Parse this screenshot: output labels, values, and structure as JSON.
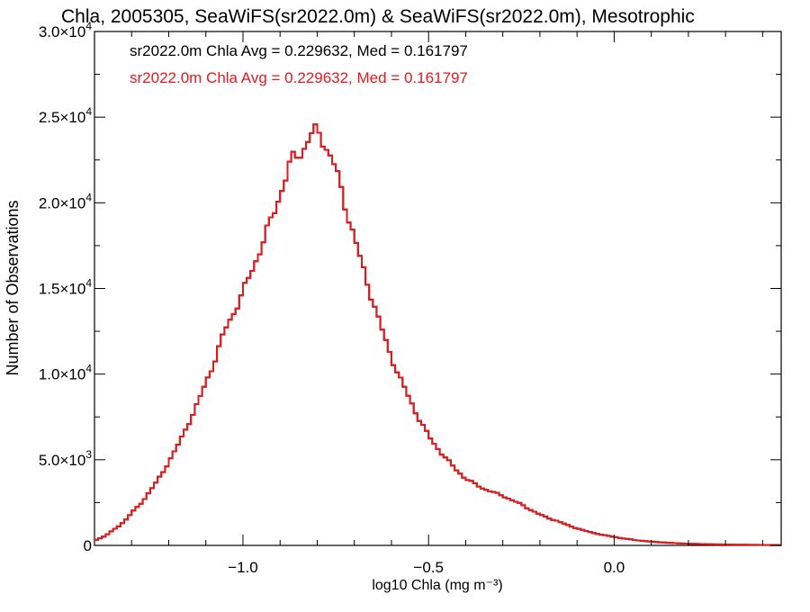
{
  "chart_data": {
    "type": "line",
    "title": "Chla, 2005305, SeaWiFS(sr2022.0m) & SeaWiFS(sr2022.0m), Mesotrophic",
    "xlabel": "log10 Chla (mg m⁻³)",
    "ylabel": "Number of Observations",
    "xlim": [
      -1.4,
      0.45
    ],
    "ylim": [
      0,
      30000
    ],
    "x_ticks": [
      -1.0,
      -0.5,
      0.0
    ],
    "x_tick_labels": [
      "−1.0",
      "−0.5",
      "0.0"
    ],
    "y_ticks": [
      0,
      5000,
      10000,
      15000,
      20000,
      25000,
      30000
    ],
    "y_tick_labels": [
      {
        "mant": "0",
        "exp": ""
      },
      {
        "mant": "5.0×10",
        "exp": "3"
      },
      {
        "mant": "1.0×10",
        "exp": "4"
      },
      {
        "mant": "1.5×10",
        "exp": "4"
      },
      {
        "mant": "2.0×10",
        "exp": "4"
      },
      {
        "mant": "2.5×10",
        "exp": "4"
      },
      {
        "mant": "3.0×10",
        "exp": "4"
      }
    ],
    "annotations": [
      {
        "text": "sr2022.0m Chla Avg = 0.229632, Med = 0.161797",
        "color": "#000000"
      },
      {
        "text": "sr2022.0m Chla Avg = 0.229632, Med = 0.161797",
        "color": "#e41a1c"
      }
    ],
    "series": [
      {
        "color": "#000000",
        "x": [
          -1.4,
          -1.35,
          -1.3,
          -1.25,
          -1.2,
          -1.15,
          -1.1,
          -1.05,
          -1.0,
          -0.95,
          -0.9,
          -0.87,
          -0.84,
          -0.82,
          -0.8,
          -0.78,
          -0.75,
          -0.7,
          -0.65,
          -0.6,
          -0.55,
          -0.5,
          -0.45,
          -0.4,
          -0.35,
          -0.3,
          -0.25,
          -0.2,
          -0.15,
          -0.1,
          -0.05,
          0.0,
          0.05,
          0.1,
          0.2,
          0.3,
          0.45
        ],
        "y": [
          300,
          900,
          1900,
          3200,
          4900,
          7000,
          9500,
          12500,
          14800,
          17500,
          20500,
          22500,
          23000,
          23900,
          24200,
          23500,
          22000,
          18000,
          14300,
          11000,
          8500,
          6400,
          5000,
          3900,
          3300,
          2900,
          2400,
          1800,
          1400,
          1000,
          700,
          500,
          330,
          220,
          100,
          50,
          20
        ]
      },
      {
        "color": "#e41a1c",
        "x": [
          -1.4,
          -1.35,
          -1.3,
          -1.25,
          -1.2,
          -1.15,
          -1.1,
          -1.05,
          -1.0,
          -0.95,
          -0.9,
          -0.87,
          -0.84,
          -0.82,
          -0.8,
          -0.78,
          -0.75,
          -0.7,
          -0.65,
          -0.6,
          -0.55,
          -0.5,
          -0.45,
          -0.4,
          -0.35,
          -0.3,
          -0.25,
          -0.2,
          -0.15,
          -0.1,
          -0.05,
          0.0,
          0.05,
          0.1,
          0.2,
          0.3,
          0.45
        ],
        "y": [
          300,
          900,
          1900,
          3200,
          4900,
          7000,
          9500,
          12500,
          14800,
          17500,
          20500,
          22500,
          23000,
          23900,
          24200,
          23500,
          22000,
          18000,
          14300,
          11000,
          8500,
          6400,
          5000,
          3900,
          3300,
          2900,
          2400,
          1800,
          1400,
          1000,
          700,
          500,
          330,
          220,
          100,
          50,
          20
        ]
      }
    ]
  }
}
